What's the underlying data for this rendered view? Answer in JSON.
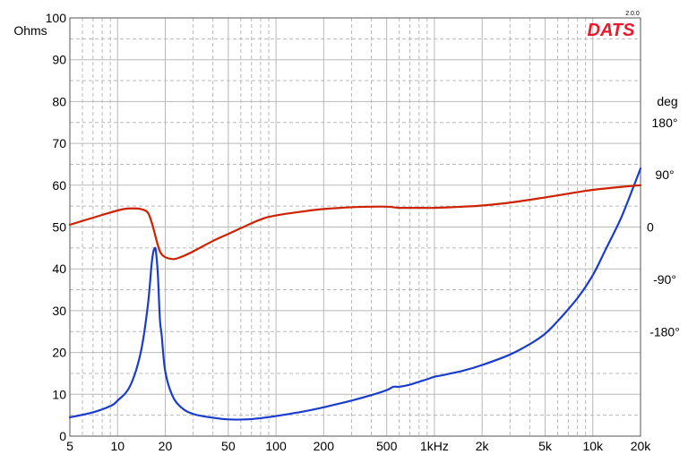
{
  "chart_data": {
    "type": "line",
    "brand": {
      "logo_text": "DATS",
      "version": "2.0.0",
      "color": "#e8192c"
    },
    "x_axis": {
      "scale": "log",
      "range": [
        5,
        20000
      ],
      "tick_values": [
        5,
        10,
        20,
        50,
        100,
        200,
        500,
        1000,
        2000,
        5000,
        10000,
        20000
      ],
      "tick_labels": [
        "5",
        "10",
        "20",
        "50",
        "100",
        "200",
        "500",
        "1kHz",
        "2k",
        "5k",
        "10k",
        "20k"
      ],
      "grid": true
    },
    "y_left": {
      "label": "Ohms",
      "label_color": "#2233dd",
      "range": [
        0,
        100
      ],
      "ticks": [
        0,
        10,
        20,
        30,
        40,
        50,
        60,
        70,
        80,
        90,
        100
      ],
      "tick_labels": [
        "0",
        "10",
        "20",
        "30",
        "40",
        "50",
        "60",
        "70",
        "80",
        "90",
        "100"
      ]
    },
    "y_right": {
      "label": "deg",
      "label_color": "#e8192c",
      "range": [
        -360,
        360
      ],
      "ticks": [
        180,
        90,
        0,
        -90,
        -180
      ],
      "tick_labels": [
        "180°",
        "90°",
        "0",
        "-90°",
        "-180°"
      ]
    },
    "grid_color": "#b8b8b8",
    "series": [
      {
        "axis": "left",
        "color": "#1a3ccc",
        "x": [
          5,
          7,
          9,
          10,
          12,
          14,
          15.5,
          16.5,
          17.2,
          17.6,
          18,
          18.5,
          19,
          20,
          22,
          25,
          30,
          40,
          50,
          65,
          80,
          100,
          150,
          200,
          300,
          400,
          500,
          550,
          600,
          700,
          800,
          900,
          1000,
          1100,
          1500,
          2000,
          3000,
          4000,
          5000,
          6000,
          8000,
          10000,
          12000,
          15000,
          18000,
          20000
        ],
        "values": [
          4.5,
          5.7,
          7.2,
          8.5,
          12,
          20,
          31,
          42,
          45,
          43,
          38,
          28,
          24,
          15.5,
          10,
          7,
          5.3,
          4.4,
          4.0,
          4.0,
          4.3,
          4.8,
          5.9,
          6.9,
          8.5,
          9.8,
          11,
          11.8,
          11.8,
          12.3,
          13,
          13.6,
          14.2,
          14.5,
          15.6,
          17,
          19.5,
          22,
          24.5,
          27.5,
          33,
          38.5,
          44.5,
          52,
          59.5,
          64
        ]
      },
      {
        "axis": "right",
        "color": "#cc2200",
        "x": [
          5,
          7,
          9,
          11,
          12.5,
          14,
          15.5,
          16.5,
          17.5,
          18.5,
          19.5,
          21,
          23,
          26,
          30,
          40,
          50,
          60,
          80,
          100,
          150,
          200,
          300,
          400,
          500,
          550,
          600,
          700,
          800,
          1000,
          1500,
          2000,
          3000,
          5000,
          8000,
          10000,
          15000,
          20000
        ],
        "values": [
          4,
          16,
          25,
          31,
          32,
          31,
          25,
          6,
          -20,
          -42,
          -50,
          -54,
          -55,
          -50,
          -42,
          -24,
          -12,
          -2,
          13,
          20,
          27,
          31,
          34,
          35,
          35,
          34,
          33,
          33,
          33,
          33,
          35,
          37,
          42,
          51,
          60,
          64,
          69,
          72
        ]
      }
    ]
  }
}
